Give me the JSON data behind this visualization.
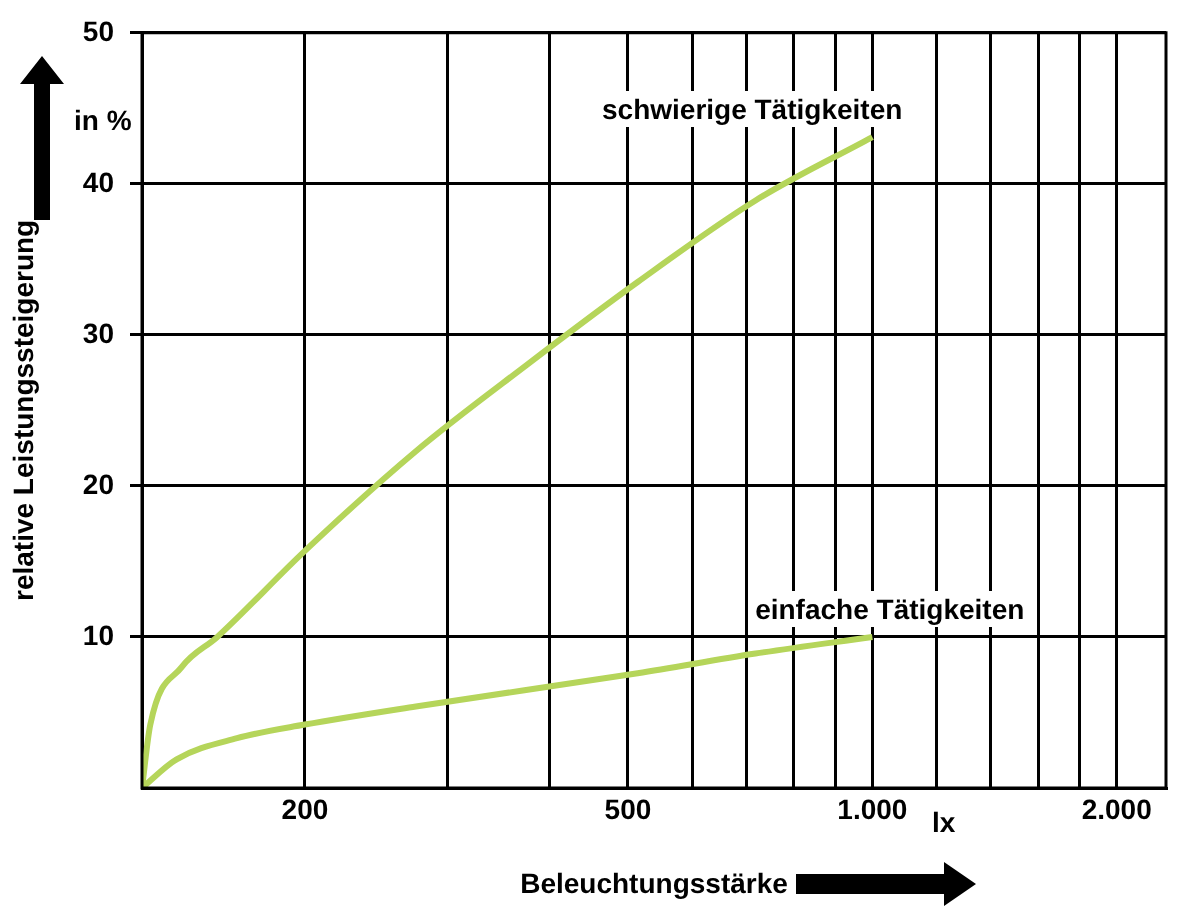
{
  "chart_data": {
    "type": "line",
    "xlabel": "Beleuchtungsstärke",
    "ylabel": "relative Leistungssteigerung",
    "annotations": [
      "in %",
      "lx"
    ],
    "log": "x",
    "xlim": [
      126,
      2300
    ],
    "xticks": [
      {
        "value": 200,
        "label": "200"
      },
      {
        "value": 300,
        "label": null
      },
      {
        "value": 400,
        "label": null
      },
      {
        "value": 500,
        "label": "500"
      },
      {
        "value": 600,
        "label": null
      },
      {
        "value": 700,
        "label": null
      },
      {
        "value": 800,
        "label": null
      },
      {
        "value": 900,
        "label": null
      },
      {
        "value": 1000,
        "label": "1.000"
      },
      {
        "value": 1200,
        "label": null
      },
      {
        "value": 1400,
        "label": null
      },
      {
        "value": 1600,
        "label": null
      },
      {
        "value": 1800,
        "label": null
      },
      {
        "value": 2000,
        "label": "2.000"
      }
    ],
    "ylim": [
      0,
      50
    ],
    "yticks": [
      10,
      20,
      30,
      40,
      50
    ],
    "grid": true,
    "legend": false,
    "marker": "none",
    "line_style": "solid",
    "series": [
      {
        "name": "schwierige Tätigkeiten",
        "color": "#b5d55a",
        "x": [
          126,
          129,
          141,
          156,
          200,
          274,
          375,
          514,
          718,
          1000
        ],
        "values": [
          0,
          4.2,
          8,
          10,
          15.7,
          22.3,
          28,
          33.5,
          38.9,
          43.1
        ]
      },
      {
        "name": "einfache Tätigkeiten",
        "color": "#b5d55a",
        "x": [
          126,
          139,
          165,
          200,
          274,
          514,
          718,
          1000
        ],
        "values": [
          0,
          1.9,
          3.3,
          4.2,
          5.4,
          7.6,
          8.9,
          10
        ]
      }
    ]
  }
}
